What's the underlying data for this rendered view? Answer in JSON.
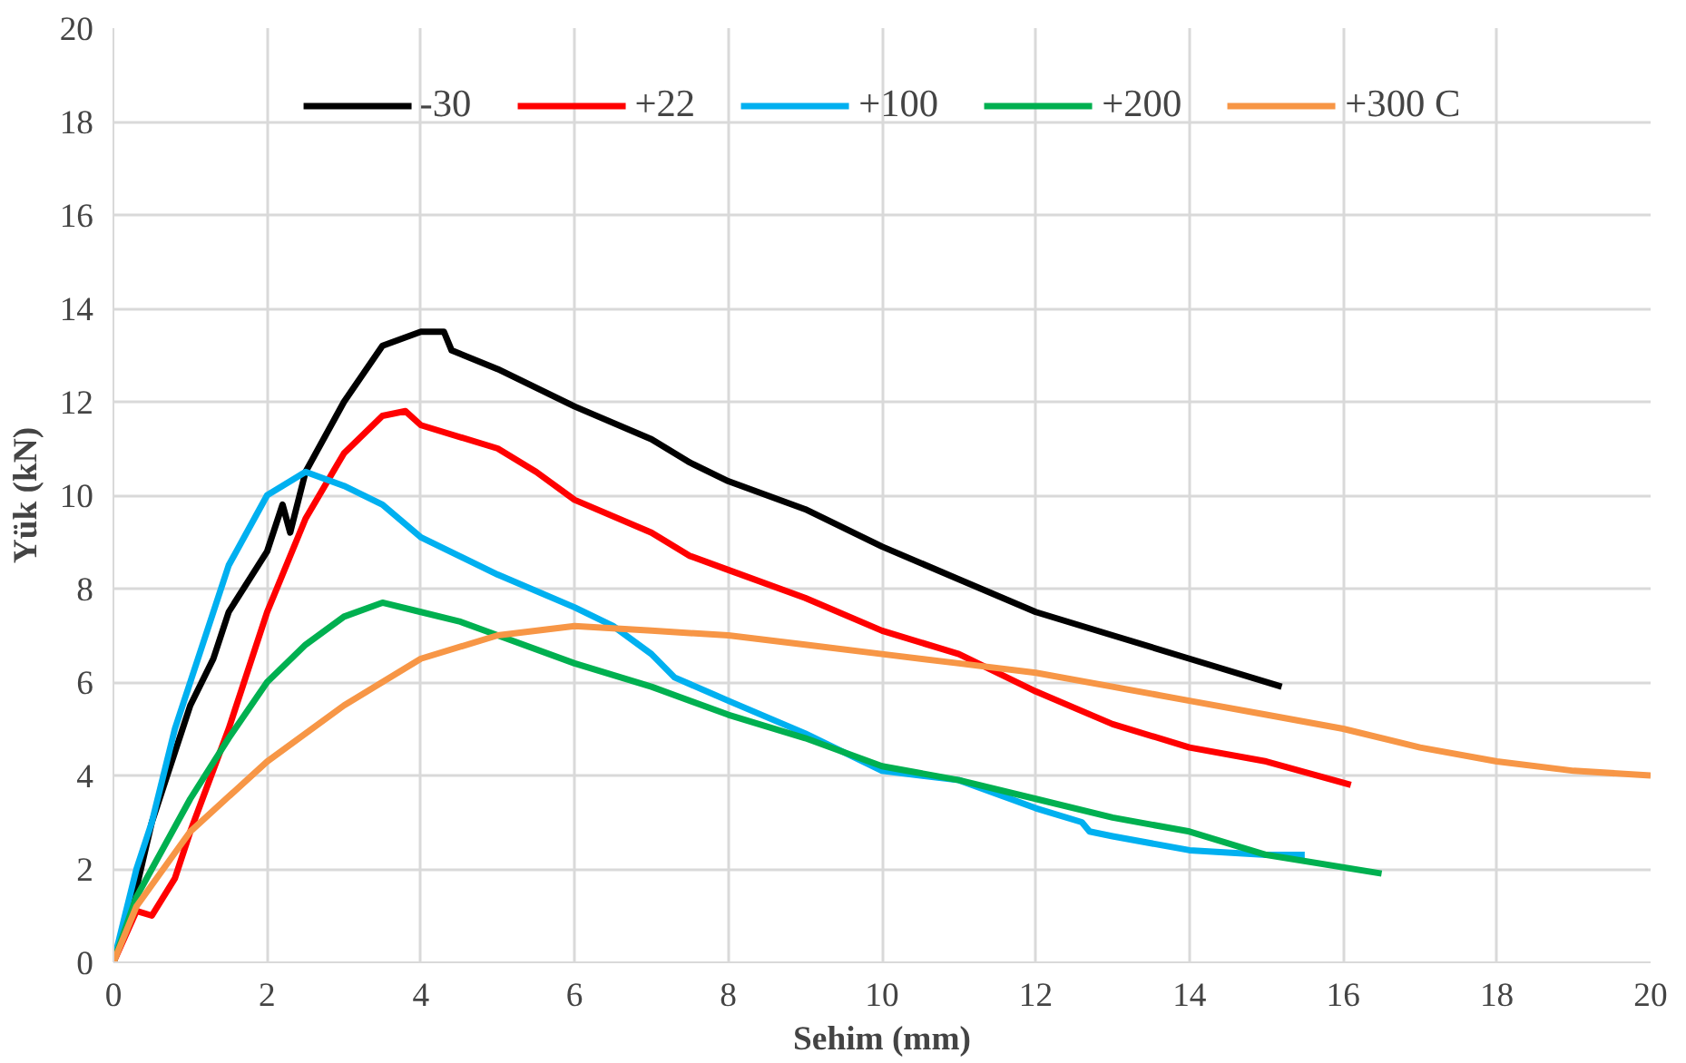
{
  "chart_data": {
    "type": "line",
    "xlabel": "Sehim (mm)",
    "ylabel": "Yük (kN)",
    "xlim": [
      0,
      20
    ],
    "ylim": [
      0,
      20
    ],
    "xticks": [
      0,
      2,
      4,
      6,
      8,
      10,
      12,
      14,
      16,
      18,
      20
    ],
    "yticks": [
      0,
      2,
      4,
      6,
      8,
      10,
      12,
      14,
      16,
      18,
      20
    ],
    "grid": true,
    "legend": "top",
    "line_style": "solid",
    "marker": "none",
    "series": [
      {
        "name": "-30",
        "color": "#000000",
        "x": [
          0,
          0.3,
          0.5,
          0.8,
          1,
          1.3,
          1.5,
          2,
          2.2,
          2.3,
          2.5,
          3,
          3.5,
          4,
          4.3,
          4.4,
          5,
          6,
          7,
          7.5,
          8,
          9,
          10,
          11,
          12,
          13,
          14,
          15.2
        ],
        "values": [
          0,
          1.6,
          3,
          4.5,
          5.5,
          6.5,
          7.5,
          8.8,
          9.8,
          9.2,
          10.5,
          12,
          13.2,
          13.5,
          13.5,
          13.1,
          12.7,
          11.9,
          11.2,
          10.7,
          10.3,
          9.7,
          8.9,
          8.2,
          7.5,
          7,
          6.5,
          5.9
        ]
      },
      {
        "name": "+22",
        "color": "#ff0000",
        "x": [
          0,
          0.3,
          0.5,
          0.8,
          1,
          1.5,
          2,
          2.5,
          3,
          3.5,
          3.8,
          4,
          5,
          5.5,
          6,
          7,
          7.5,
          8,
          9,
          10,
          11,
          12,
          13,
          14,
          15,
          16.1
        ],
        "values": [
          0,
          1.1,
          1,
          1.8,
          2.8,
          5,
          7.5,
          9.5,
          10.9,
          11.7,
          11.8,
          11.5,
          11,
          10.5,
          9.9,
          9.2,
          8.7,
          8.4,
          7.8,
          7.1,
          6.6,
          5.8,
          5.1,
          4.6,
          4.3,
          3.8
        ]
      },
      {
        "name": "+100",
        "color": "#00b0f0",
        "x": [
          0,
          0.3,
          0.5,
          0.8,
          1,
          1.3,
          1.5,
          2,
          2.5,
          3,
          3.5,
          4,
          5,
          6,
          6.5,
          7,
          7.3,
          8,
          9,
          10,
          11,
          12,
          12.6,
          12.7,
          13,
          14,
          15,
          15.5
        ],
        "values": [
          0,
          2,
          3,
          5,
          6,
          7.5,
          8.5,
          10,
          10.5,
          10.2,
          9.8,
          9.1,
          8.3,
          7.6,
          7.2,
          6.6,
          6.1,
          5.6,
          4.9,
          4.1,
          3.9,
          3.3,
          3,
          2.8,
          2.7,
          2.4,
          2.3,
          2.3
        ]
      },
      {
        "name": "+200",
        "color": "#00b050",
        "x": [
          0,
          0.3,
          0.5,
          1,
          1.5,
          2,
          2.5,
          3,
          3.5,
          4,
          4.5,
          5,
          6,
          7,
          8,
          9,
          10,
          11,
          12,
          13,
          14,
          15,
          16.5
        ],
        "values": [
          0,
          1.4,
          2,
          3.5,
          4.8,
          6,
          6.8,
          7.4,
          7.7,
          7.5,
          7.3,
          7,
          6.4,
          5.9,
          5.3,
          4.8,
          4.2,
          3.9,
          3.5,
          3.1,
          2.8,
          2.3,
          1.9
        ]
      },
      {
        "name": "+300 C",
        "color": "#f79646",
        "x": [
          0,
          0.3,
          1,
          2,
          3,
          4,
          5,
          6,
          7,
          8,
          9,
          10,
          11,
          12,
          13,
          14,
          15,
          16,
          17,
          18,
          19,
          20
        ],
        "values": [
          0,
          1.2,
          2.8,
          4.3,
          5.5,
          6.5,
          7,
          7.2,
          7.1,
          7,
          6.8,
          6.6,
          6.4,
          6.2,
          5.9,
          5.6,
          5.3,
          5,
          4.6,
          4.3,
          4.1,
          4
        ]
      }
    ]
  }
}
